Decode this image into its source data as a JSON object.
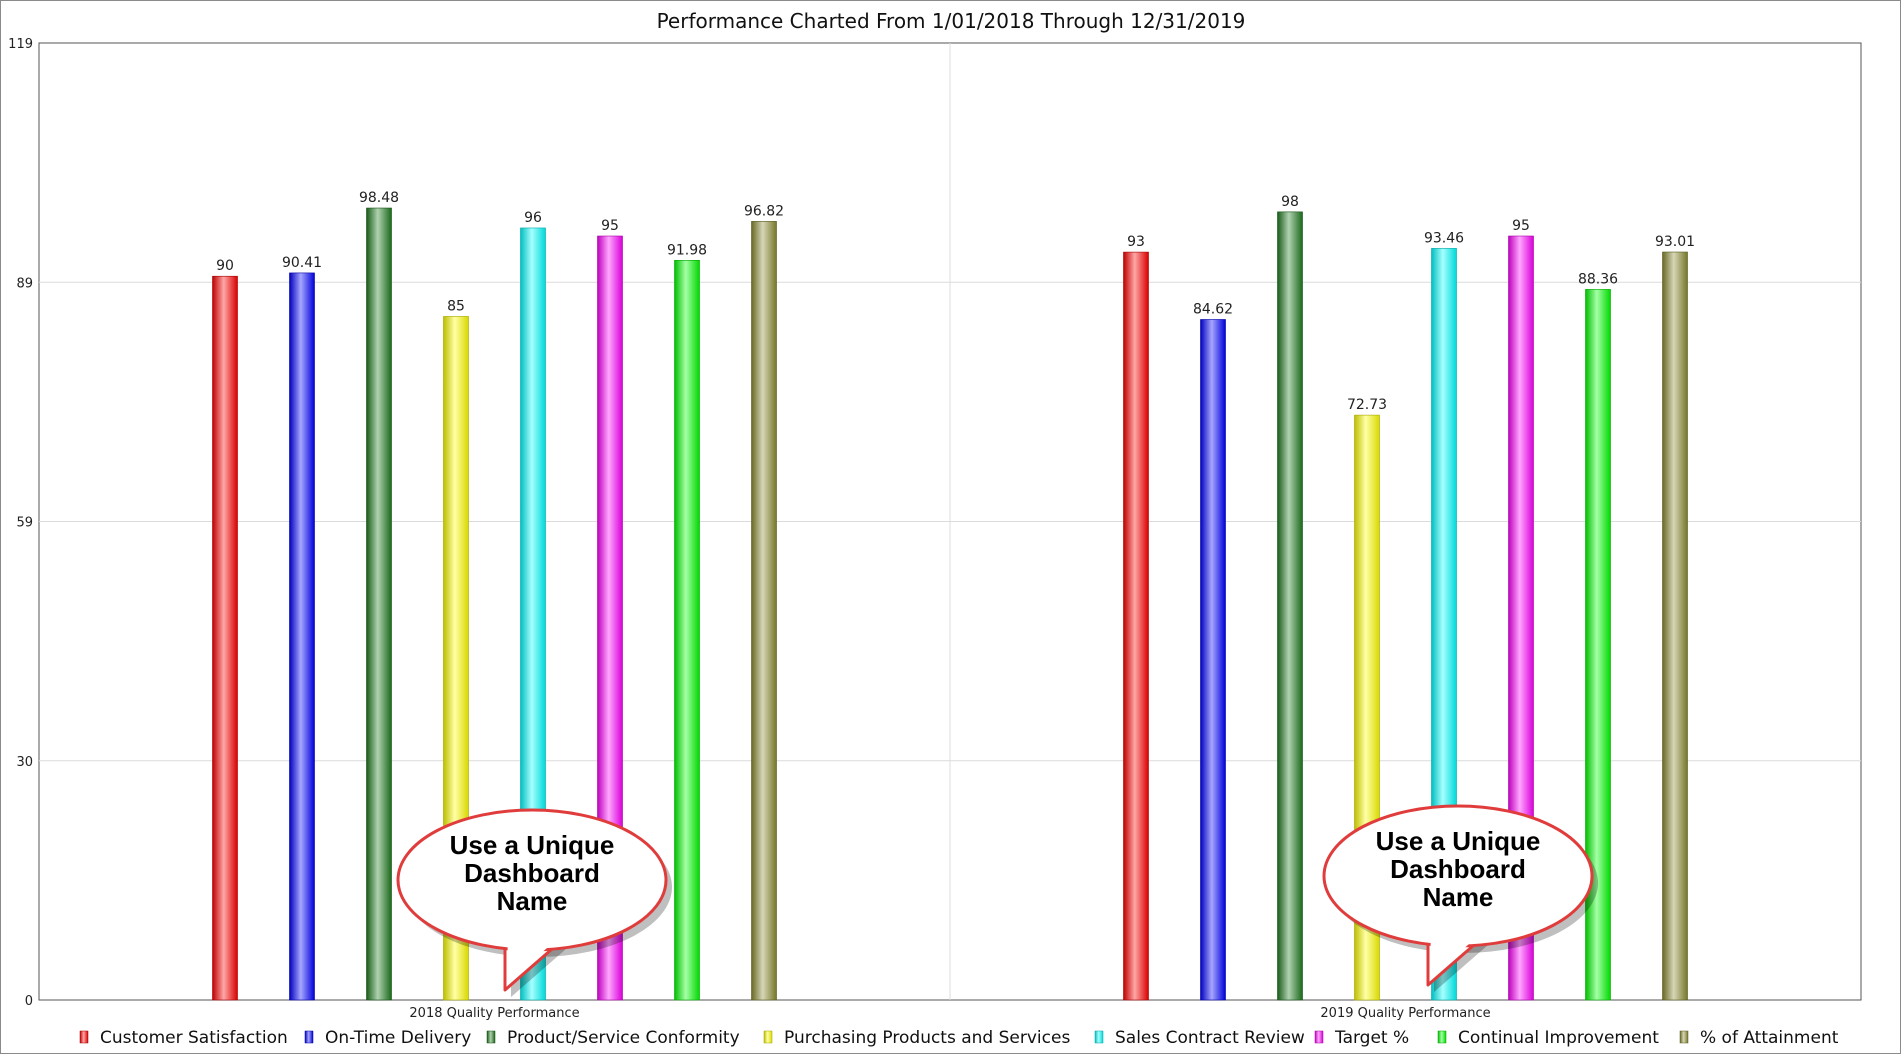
{
  "chart_data": {
    "type": "bar",
    "title": "Performance Charted From  1/01/2018 Through 12/31/2019",
    "categories": [
      "2018 Quality Performance",
      "2019 Quality Performance"
    ],
    "ylim": [
      0,
      119
    ],
    "yticks": [
      "0",
      "30",
      "59",
      "89",
      "119"
    ],
    "ytick_values": [
      0,
      29.75,
      59.5,
      89.25,
      119
    ],
    "grid": true,
    "legend_position": "bottom",
    "series": [
      {
        "name": "Customer Satisfaction",
        "color": "#ff0000",
        "values": [
          90,
          93
        ],
        "labels": [
          "90",
          "93"
        ]
      },
      {
        "name": "On-Time Delivery",
        "color": "#0000ff",
        "values": [
          90.41,
          84.62
        ],
        "labels": [
          "90.41",
          "84.62"
        ]
      },
      {
        "name": "Product/Service Conformity",
        "color": "#1e7b1e",
        "values": [
          98.48,
          98
        ],
        "labels": [
          "98.48",
          "98"
        ]
      },
      {
        "name": "Purchasing Products and Services",
        "color": "#ffff00",
        "values": [
          85,
          72.73
        ],
        "labels": [
          "85",
          "72.73"
        ]
      },
      {
        "name": "Sales Contract Review",
        "color": "#00ffff",
        "values": [
          96,
          93.46
        ],
        "labels": [
          "96",
          "93.46"
        ]
      },
      {
        "name": "Target %",
        "color": "#ff00ff",
        "values": [
          95,
          95
        ],
        "labels": [
          "95",
          "95"
        ]
      },
      {
        "name": "Continual Improvement",
        "color": "#00ff00",
        "values": [
          91.98,
          88.36
        ],
        "labels": [
          "91.98",
          "88.36"
        ]
      },
      {
        "name": "% of Attainment",
        "color": "#8b8b30",
        "values": [
          96.82,
          93.01
        ],
        "labels": [
          "96.82",
          "93.01"
        ]
      }
    ],
    "annotations": [
      {
        "text_lines": [
          "Use a Unique",
          "Dashboard",
          "Name"
        ],
        "category": 0
      },
      {
        "text_lines": [
          "Use a Unique",
          "Dashboard",
          "Name"
        ],
        "category": 1
      }
    ]
  }
}
